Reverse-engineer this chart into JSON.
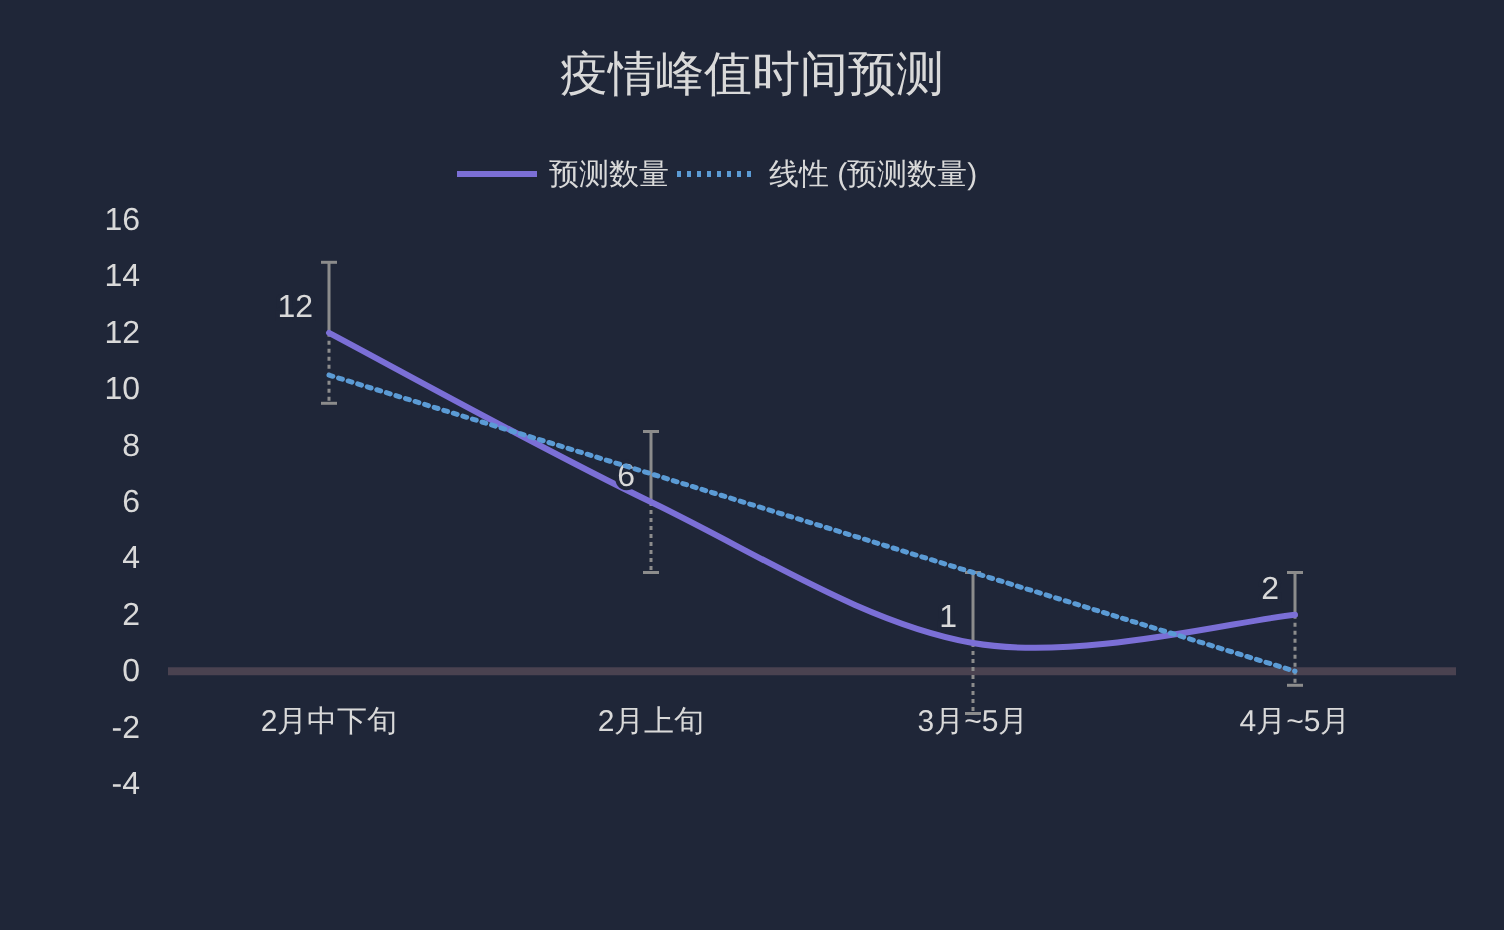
{
  "chart_data": {
    "type": "line",
    "title": "疫情峰值时间预测",
    "categories": [
      "2月中下旬",
      "2月上旬",
      "3月~5月",
      "4月~5月"
    ],
    "series": [
      {
        "name": "预测数量",
        "color": "#7b6fd6",
        "values": [
          12,
          6,
          1,
          2
        ],
        "errors": [
          2.5,
          2.5,
          [
            -1.5,
            3.5
          ],
          [
            -0.5,
            3.5
          ]
        ],
        "value_labels": [
          "12",
          "6",
          "1",
          "2"
        ]
      },
      {
        "name": "线性 (预测数量)",
        "color": "#5b9bd5",
        "values": [
          10.5,
          7,
          3.5,
          0
        ],
        "line_style": "dotted"
      }
    ],
    "ylim": [
      -4,
      16
    ],
    "yticks": [
      -4,
      -2,
      0,
      2,
      4,
      6,
      8,
      10,
      12,
      14,
      16
    ],
    "grid": false,
    "legend": "top",
    "marker": "none"
  }
}
